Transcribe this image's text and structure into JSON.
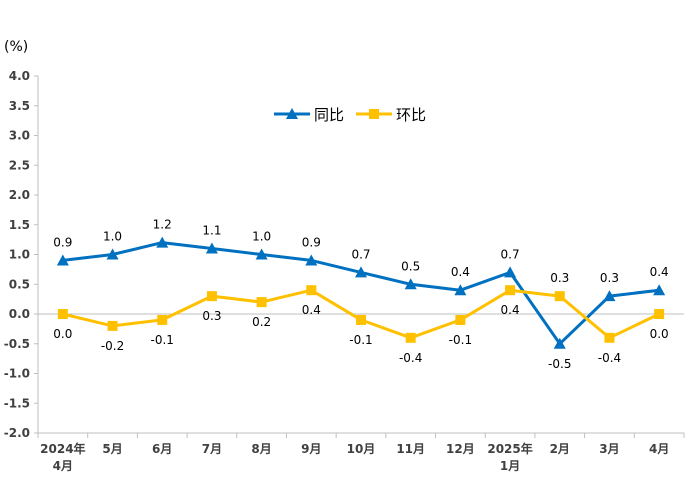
{
  "chart_data": {
    "type": "line",
    "unit_label": "(%)",
    "categories": [
      [
        "2024年",
        "4月"
      ],
      [
        "5月"
      ],
      [
        "6月"
      ],
      [
        "7月"
      ],
      [
        "8月"
      ],
      [
        "9月"
      ],
      [
        "10月"
      ],
      [
        "11月"
      ],
      [
        "12月"
      ],
      [
        "2025年",
        "1月"
      ],
      [
        "2月"
      ],
      [
        "3月"
      ],
      [
        "4月"
      ]
    ],
    "series": [
      {
        "name": "同比",
        "color": "#0070C0",
        "marker": "triangle",
        "values": [
          0.9,
          1.0,
          1.2,
          1.1,
          1.0,
          0.9,
          0.7,
          0.5,
          0.4,
          0.7,
          -0.5,
          0.3,
          0.4
        ],
        "labels": [
          "0.9",
          "1.0",
          "1.2",
          "1.1",
          "1.0",
          "0.9",
          "0.7",
          "0.5",
          "0.4",
          "0.7",
          "-0.5",
          "0.3",
          "0.4"
        ]
      },
      {
        "name": "环比",
        "color": "#FFC000",
        "marker": "square",
        "values": [
          0.0,
          -0.2,
          -0.1,
          0.3,
          0.2,
          0.4,
          -0.1,
          -0.4,
          -0.1,
          0.4,
          0.3,
          -0.4,
          0.0
        ],
        "labels": [
          "0.0",
          "-0.2",
          "-0.1",
          "0.3",
          "0.2",
          "0.4",
          "-0.1",
          "-0.4",
          "-0.1",
          "0.4",
          "0.3",
          "-0.4",
          "0.0"
        ]
      }
    ],
    "ylim": [
      -2.0,
      4.0
    ],
    "yticks": [
      "4.0",
      "3.5",
      "3.0",
      "2.5",
      "2.0",
      "1.5",
      "1.0",
      "0.5",
      "0.0",
      "-0.5",
      "-1.0",
      "-1.5",
      "-2.0"
    ],
    "ytick_values": [
      4.0,
      3.5,
      3.0,
      2.5,
      2.0,
      1.5,
      1.0,
      0.5,
      0.0,
      -0.5,
      -1.0,
      -1.5,
      -2.0
    ],
    "grid": false,
    "legend_position": "top-center"
  }
}
